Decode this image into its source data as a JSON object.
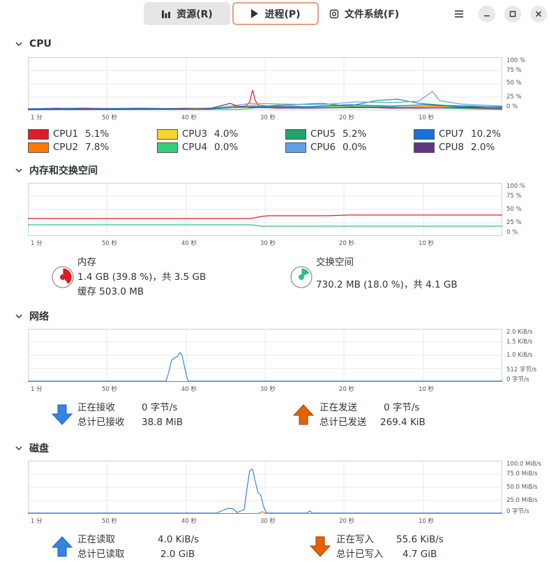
{
  "tabs": {
    "resources": "资源(R)",
    "processes": "进程(P)",
    "filesystems": "文件系统(F)"
  },
  "sections": {
    "cpu": "CPU",
    "memory": "内存和交换空间",
    "network": "网络",
    "disk": "磁盘"
  },
  "time_axis": [
    "1 分",
    "50 秒",
    "40 秒",
    "30 秒",
    "20 秒",
    "10 秒"
  ],
  "cpu": {
    "y_axis": [
      "100 %",
      "75 %",
      "50 %",
      "25 %",
      "0 %"
    ],
    "cores": [
      {
        "name": "CPU1",
        "value": "5.1%",
        "color": "#e01b24"
      },
      {
        "name": "CPU2",
        "value": "7.8%",
        "color": "#ff7800"
      },
      {
        "name": "CPU3",
        "value": "4.0%",
        "color": "#f6d32d"
      },
      {
        "name": "CPU4",
        "value": "0.0%",
        "color": "#33d17a"
      },
      {
        "name": "CPU5",
        "value": "5.2%",
        "color": "#26a269"
      },
      {
        "name": "CPU6",
        "value": "0.0%",
        "color": "#62a0ea"
      },
      {
        "name": "CPU7",
        "value": "10.2%",
        "color": "#1c71d8"
      },
      {
        "name": "CPU8",
        "value": "2.0%",
        "color": "#613583"
      }
    ]
  },
  "memory": {
    "y_axis": [
      "100 %",
      "75 %",
      "50 %",
      "25 %",
      "0 %"
    ],
    "mem_title": "内存",
    "mem_line": "1.4 GB (39.8 %)，共 3.5 GB",
    "cache_line": "缓存 503.0 MB",
    "mem_percent": 39.8,
    "mem_color": "#e01b24",
    "swap_title": "交换空间",
    "swap_line": "730.2 MB (18.0 %)，共 4.1 GB",
    "swap_percent": 18.0,
    "swap_color": "#2ec27e"
  },
  "network": {
    "y_axis": [
      "2.0 KiB/s",
      "1.5 KiB/s",
      "1.0 KiB/s",
      "512 字节/s",
      "0 字节/s"
    ],
    "recv_label": "正在接收",
    "recv_value": "0 字节/s",
    "recv_total_label": "总计已接收",
    "recv_total_value": "38.8 MiB",
    "send_label": "正在发送",
    "send_value": "0 字节/s",
    "send_total_label": "总计已发送",
    "send_total_value": "269.4 KiB",
    "recv_color": "#3584e4",
    "send_color": "#e66100"
  },
  "disk": {
    "y_axis": [
      "100.0 MiB/s",
      "75.0 MiB/s",
      "50.0 MiB/s",
      "25.0 MiB/s",
      "0 字节/s"
    ],
    "read_label": "正在读取",
    "read_value": "4.0 KiB/s",
    "read_total_label": "总计已读取",
    "read_total_value": "2.0 GiB",
    "write_label": "正在写入",
    "write_value": "55.6 KiB/s",
    "write_total_label": "总计已写入",
    "write_total_value": "4.7 GiB",
    "read_color": "#3584e4",
    "write_color": "#e66100"
  }
}
